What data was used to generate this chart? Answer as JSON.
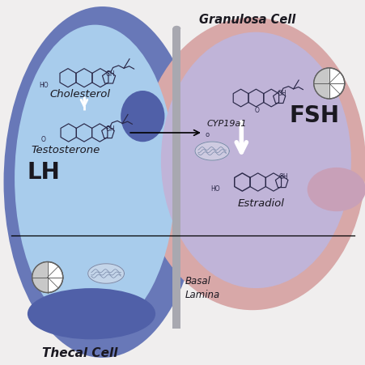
{
  "bg_color": "#f0eeee",
  "thecal_outer_color": "#6878b8",
  "thecal_inner_color": "#a8ccec",
  "thecal_blob_color": "#5060a8",
  "granulosa_outer_color": "#d8a8a8",
  "granulosa_inner_color": "#c0b4d8",
  "granulosa_blob_color": "#c8a0b8",
  "basal_lamina_color": "#a0a0a8",
  "thecal_label": "Thecal Cell",
  "granulosa_label": "Granulosa Cell",
  "cholesterol_label": "Cholesterol",
  "testosterone_label": "Testosterone",
  "lh_label": "LH",
  "fsh_label": "FSH",
  "cyp_label": "CYP19a1",
  "estradiol_label": "Estradiol",
  "basal_label": "Basal\nLamina",
  "text_color": "#1a1820",
  "mol_color": "#2a2848",
  "arrow_color": "#000000"
}
